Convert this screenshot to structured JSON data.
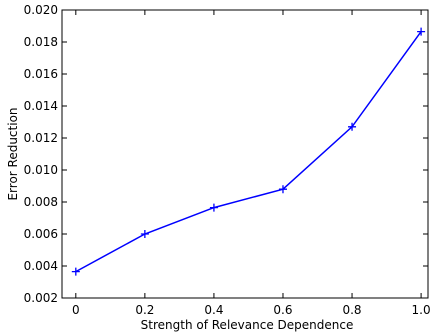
{
  "chart_data": {
    "type": "line",
    "title": "",
    "xlabel": "Strength of Relevance Dependence",
    "ylabel": "Error Reduction",
    "xlim": [
      -0.04,
      1.02
    ],
    "ylim": [
      0.002,
      0.02
    ],
    "x_ticks": [
      0,
      0.2,
      0.4,
      0.6,
      0.8,
      1.0
    ],
    "x_tick_labels": [
      "0",
      "0.2",
      "0.4",
      "0.6",
      "0.8",
      "1.0"
    ],
    "y_ticks": [
      0.002,
      0.004,
      0.006,
      0.008,
      0.01,
      0.012,
      0.014,
      0.016,
      0.018,
      0.02
    ],
    "y_tick_labels": [
      "0.002",
      "0.004",
      "0.006",
      "0.008",
      "0.010",
      "0.012",
      "0.014",
      "0.016",
      "0.018",
      "0.020"
    ],
    "grid": false,
    "legend": "none",
    "marker": "plus",
    "color": "#0000ff",
    "series": [
      {
        "x": [
          0,
          0.2,
          0.4,
          0.6,
          0.8,
          1.0
        ],
        "values": [
          0.00365,
          0.006,
          0.00765,
          0.0088,
          0.0127,
          0.01865
        ]
      }
    ]
  }
}
